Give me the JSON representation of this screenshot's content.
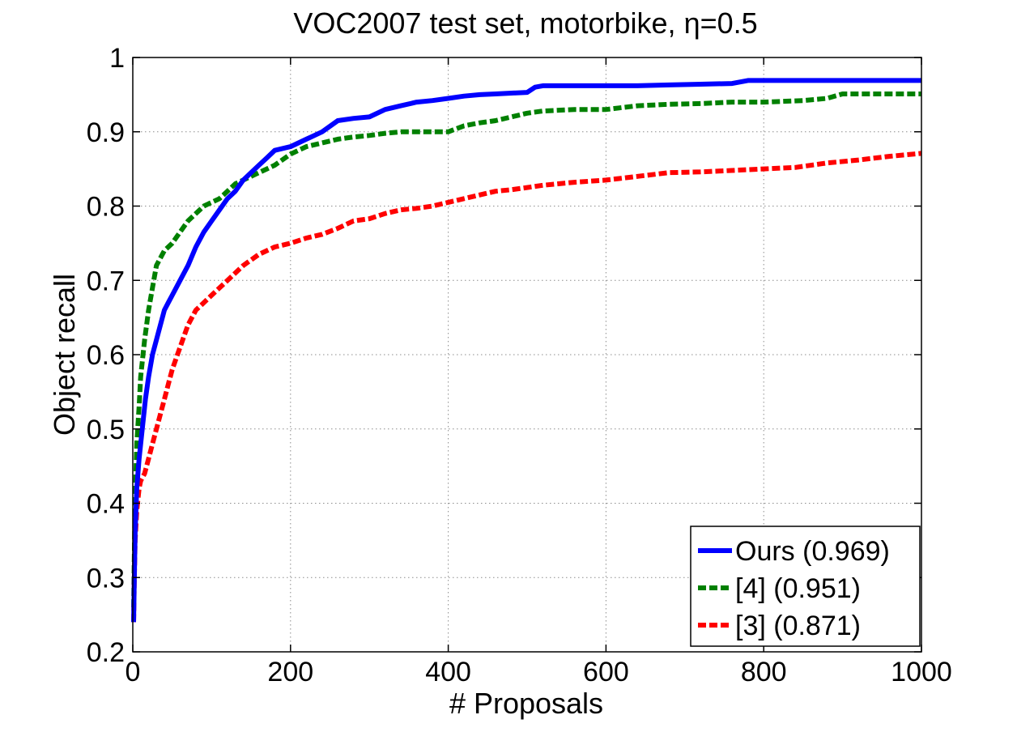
{
  "chart_data": {
    "type": "line",
    "title": "VOC2007 test set, motorbike, η=0.5",
    "xlabel": "# Proposals",
    "ylabel": "Object recall",
    "xlim": [
      0,
      1000
    ],
    "ylim": [
      0.2,
      1.0
    ],
    "xticks": [
      0,
      200,
      400,
      600,
      800,
      1000
    ],
    "xtick_labels": [
      "0",
      "200",
      "400",
      "600",
      "800",
      "1000"
    ],
    "yticks": [
      0.2,
      0.3,
      0.4,
      0.5,
      0.6,
      0.7,
      0.8,
      0.9,
      1.0
    ],
    "ytick_labels": [
      "0.2",
      "0.3",
      "0.4",
      "0.5",
      "0.6",
      "0.7",
      "0.8",
      "0.9",
      "1"
    ],
    "grid": true,
    "legend_position": "bottom-right",
    "series": [
      {
        "name": "Ours (0.969)",
        "color": "#0000ff",
        "style": "solid",
        "x": [
          1,
          2,
          3,
          5,
          8,
          12,
          16,
          20,
          25,
          30,
          35,
          40,
          45,
          50,
          60,
          70,
          80,
          90,
          100,
          110,
          120,
          130,
          140,
          150,
          160,
          170,
          180,
          200,
          220,
          240,
          260,
          280,
          300,
          320,
          340,
          360,
          380,
          400,
          420,
          440,
          460,
          480,
          500,
          510,
          520,
          560,
          600,
          640,
          680,
          720,
          760,
          780,
          800,
          850,
          900,
          950,
          1000
        ],
        "y": [
          0.24,
          0.3,
          0.36,
          0.42,
          0.46,
          0.5,
          0.54,
          0.57,
          0.6,
          0.62,
          0.64,
          0.66,
          0.67,
          0.68,
          0.7,
          0.72,
          0.745,
          0.765,
          0.78,
          0.795,
          0.81,
          0.82,
          0.835,
          0.845,
          0.855,
          0.865,
          0.875,
          0.88,
          0.89,
          0.9,
          0.915,
          0.918,
          0.92,
          0.93,
          0.935,
          0.94,
          0.942,
          0.945,
          0.948,
          0.95,
          0.951,
          0.952,
          0.953,
          0.96,
          0.962,
          0.962,
          0.962,
          0.962,
          0.963,
          0.964,
          0.965,
          0.969,
          0.969,
          0.969,
          0.969,
          0.969,
          0.969
        ]
      },
      {
        "name": "[4] (0.951)",
        "color": "#008000",
        "style": "dashed",
        "x": [
          1,
          2,
          3,
          5,
          8,
          10,
          15,
          20,
          25,
          30,
          40,
          50,
          60,
          70,
          80,
          90,
          100,
          110,
          120,
          130,
          140,
          150,
          160,
          170,
          180,
          200,
          220,
          240,
          260,
          280,
          300,
          320,
          340,
          360,
          380,
          400,
          420,
          440,
          460,
          480,
          500,
          520,
          560,
          600,
          640,
          680,
          720,
          760,
          800,
          850,
          880,
          900,
          950,
          1000
        ],
        "y": [
          0.26,
          0.33,
          0.4,
          0.48,
          0.53,
          0.57,
          0.62,
          0.66,
          0.69,
          0.72,
          0.74,
          0.75,
          0.765,
          0.78,
          0.79,
          0.8,
          0.805,
          0.81,
          0.82,
          0.83,
          0.835,
          0.84,
          0.845,
          0.85,
          0.855,
          0.87,
          0.88,
          0.885,
          0.89,
          0.893,
          0.895,
          0.898,
          0.9,
          0.9,
          0.9,
          0.9,
          0.908,
          0.912,
          0.915,
          0.92,
          0.925,
          0.928,
          0.93,
          0.93,
          0.935,
          0.937,
          0.938,
          0.94,
          0.94,
          0.942,
          0.945,
          0.951,
          0.951,
          0.951
        ]
      },
      {
        "name": "[3] (0.871)",
        "color": "#ff0000",
        "style": "dashed",
        "x": [
          1,
          2,
          3,
          5,
          8,
          10,
          15,
          20,
          25,
          30,
          35,
          40,
          45,
          50,
          60,
          70,
          80,
          90,
          100,
          120,
          140,
          160,
          180,
          200,
          220,
          240,
          260,
          280,
          300,
          320,
          340,
          360,
          380,
          400,
          420,
          440,
          460,
          480,
          500,
          520,
          560,
          600,
          640,
          680,
          720,
          760,
          800,
          840,
          880,
          920,
          960,
          1000
        ],
        "y": [
          0.24,
          0.3,
          0.35,
          0.39,
          0.42,
          0.43,
          0.44,
          0.46,
          0.48,
          0.5,
          0.52,
          0.54,
          0.56,
          0.58,
          0.61,
          0.64,
          0.66,
          0.67,
          0.68,
          0.7,
          0.72,
          0.735,
          0.745,
          0.75,
          0.757,
          0.762,
          0.77,
          0.78,
          0.783,
          0.79,
          0.795,
          0.797,
          0.8,
          0.805,
          0.81,
          0.815,
          0.82,
          0.822,
          0.825,
          0.828,
          0.832,
          0.835,
          0.84,
          0.845,
          0.846,
          0.848,
          0.85,
          0.852,
          0.858,
          0.862,
          0.867,
          0.871
        ]
      }
    ]
  }
}
